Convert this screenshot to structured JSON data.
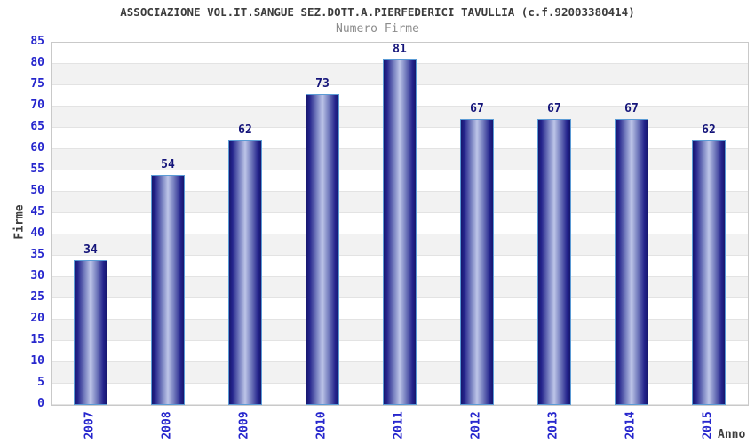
{
  "header": {
    "title": "ASSOCIAZIONE VOL.IT.SANGUE SEZ.DOTT.A.PIERFEDERICI TAVULLIA (c.f.92003380414)",
    "subtitle": "Numero Firme"
  },
  "chart_data": {
    "type": "bar",
    "title": "ASSOCIAZIONE VOL.IT.SANGUE SEZ.DOTT.A.PIERFEDERICI TAVULLIA (c.f.92003380414)",
    "subtitle": "Numero Firme",
    "categories": [
      "2007",
      "2008",
      "2009",
      "2010",
      "2011",
      "2012",
      "2013",
      "2014",
      "2015"
    ],
    "values": [
      34,
      54,
      62,
      73,
      81,
      67,
      67,
      67,
      62
    ],
    "xlabel": "Anno",
    "ylabel": "Firme",
    "ylim": [
      0,
      85
    ],
    "ytick_step": 5,
    "grid": "horizontal-bands-alternating",
    "legend": "none",
    "colors": {
      "bar_dark": "#16166e",
      "bar_deep": "#24248c",
      "bar_mid": "#7b84c2",
      "bar_highlight": "#bdc5e8",
      "bar_border": "#5b9bd5",
      "tick_label": "#2626cd",
      "value_label": "#15157a",
      "title": "#3c3c3c",
      "subtitle": "#8c8c8c",
      "band": "#f2f2f2",
      "gridline": "#e3e3e3",
      "plot_border": "#c9c9c9"
    }
  }
}
